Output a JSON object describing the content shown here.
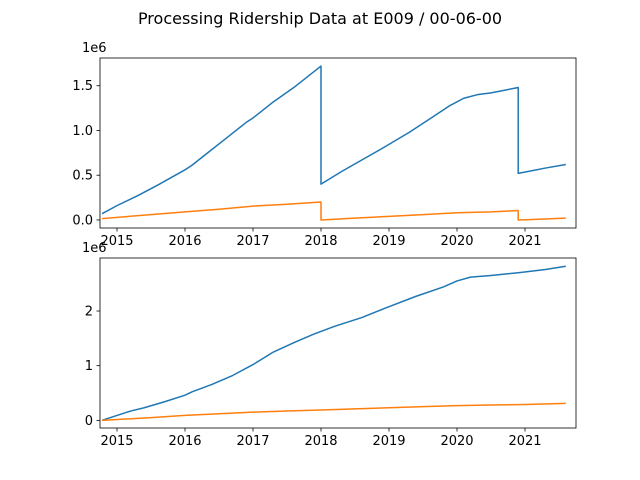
{
  "figure": {
    "suptitle": "Processing Ridership Data at E009 / 00-06-00",
    "colors": {
      "series1": "#1f77b4",
      "series2": "#ff7f0e"
    }
  },
  "chart_data": [
    {
      "type": "line",
      "offset_label": "1e6",
      "xlim": [
        2014.75,
        2021.75
      ],
      "ylim": [
        -0.09,
        1.81
      ],
      "xticks": [
        2015,
        2016,
        2017,
        2018,
        2019,
        2020,
        2021
      ],
      "xtick_labels": [
        "2015",
        "2016",
        "2017",
        "2018",
        "2019",
        "2020",
        "2021"
      ],
      "yticks": [
        0.0,
        0.5,
        1.0,
        1.5
      ],
      "ytick_labels": [
        "0.0",
        "0.5",
        "1.0",
        "1.5"
      ],
      "series": [
        {
          "color": "#1f77b4",
          "points": [
            [
              2014.78,
              0.07
            ],
            [
              2015.0,
              0.16
            ],
            [
              2015.3,
              0.27
            ],
            [
              2015.6,
              0.39
            ],
            [
              2016.0,
              0.56
            ],
            [
              2016.1,
              0.61
            ],
            [
              2016.3,
              0.73
            ],
            [
              2016.6,
              0.91
            ],
            [
              2016.9,
              1.09
            ],
            [
              2017.0,
              1.14
            ],
            [
              2017.3,
              1.32
            ],
            [
              2017.6,
              1.48
            ],
            [
              2017.9,
              1.66
            ],
            [
              2018.0,
              1.72
            ],
            [
              2018.0,
              0.4
            ],
            [
              2018.3,
              0.54
            ],
            [
              2018.6,
              0.67
            ],
            [
              2018.9,
              0.8
            ],
            [
              2019.3,
              0.98
            ],
            [
              2019.6,
              1.13
            ],
            [
              2019.9,
              1.28
            ],
            [
              2020.1,
              1.36
            ],
            [
              2020.3,
              1.4
            ],
            [
              2020.5,
              1.42
            ],
            [
              2020.7,
              1.45
            ],
            [
              2020.9,
              1.48
            ],
            [
              2020.9,
              0.52
            ],
            [
              2021.1,
              0.55
            ],
            [
              2021.3,
              0.58
            ],
            [
              2021.6,
              0.62
            ]
          ]
        },
        {
          "color": "#ff7f0e",
          "points": [
            [
              2014.78,
              0.015
            ],
            [
              2015.5,
              0.06
            ],
            [
              2016.0,
              0.09
            ],
            [
              2016.5,
              0.12
            ],
            [
              2017.0,
              0.155
            ],
            [
              2017.5,
              0.175
            ],
            [
              2018.0,
              0.2
            ],
            [
              2018.0,
              0.0
            ],
            [
              2018.5,
              0.02
            ],
            [
              2019.0,
              0.04
            ],
            [
              2019.5,
              0.06
            ],
            [
              2020.0,
              0.08
            ],
            [
              2020.5,
              0.09
            ],
            [
              2020.9,
              0.105
            ],
            [
              2020.9,
              0.0
            ],
            [
              2021.3,
              0.01
            ],
            [
              2021.6,
              0.02
            ]
          ]
        }
      ]
    },
    {
      "type": "line",
      "offset_label": "1e6",
      "xlim": [
        2014.75,
        2021.75
      ],
      "ylim": [
        -0.14,
        2.97
      ],
      "xticks": [
        2015,
        2016,
        2017,
        2018,
        2019,
        2020,
        2021
      ],
      "xtick_labels": [
        "2015",
        "2016",
        "2017",
        "2018",
        "2019",
        "2020",
        "2021"
      ],
      "yticks": [
        0,
        1,
        2
      ],
      "ytick_labels": [
        "0",
        "1",
        "2"
      ],
      "series": [
        {
          "color": "#1f77b4",
          "points": [
            [
              2014.78,
              0.0
            ],
            [
              2015.0,
              0.09
            ],
            [
              2015.2,
              0.17
            ],
            [
              2015.4,
              0.23
            ],
            [
              2015.7,
              0.34
            ],
            [
              2016.0,
              0.46
            ],
            [
              2016.1,
              0.52
            ],
            [
              2016.4,
              0.66
            ],
            [
              2016.7,
              0.82
            ],
            [
              2017.0,
              1.02
            ],
            [
              2017.3,
              1.25
            ],
            [
              2017.6,
              1.42
            ],
            [
              2017.9,
              1.58
            ],
            [
              2018.2,
              1.72
            ],
            [
              2018.6,
              1.88
            ],
            [
              2019.0,
              2.08
            ],
            [
              2019.4,
              2.27
            ],
            [
              2019.8,
              2.44
            ],
            [
              2020.0,
              2.55
            ],
            [
              2020.2,
              2.62
            ],
            [
              2020.5,
              2.65
            ],
            [
              2020.9,
              2.7
            ],
            [
              2021.3,
              2.76
            ],
            [
              2021.6,
              2.82
            ]
          ]
        },
        {
          "color": "#ff7f0e",
          "points": [
            [
              2014.78,
              0.0
            ],
            [
              2015.5,
              0.05
            ],
            [
              2016.0,
              0.09
            ],
            [
              2016.5,
              0.12
            ],
            [
              2017.0,
              0.15
            ],
            [
              2017.5,
              0.17
            ],
            [
              2018.0,
              0.19
            ],
            [
              2018.5,
              0.21
            ],
            [
              2019.0,
              0.23
            ],
            [
              2019.5,
              0.25
            ],
            [
              2020.0,
              0.27
            ],
            [
              2020.5,
              0.28
            ],
            [
              2021.0,
              0.29
            ],
            [
              2021.6,
              0.31
            ]
          ]
        }
      ]
    }
  ]
}
